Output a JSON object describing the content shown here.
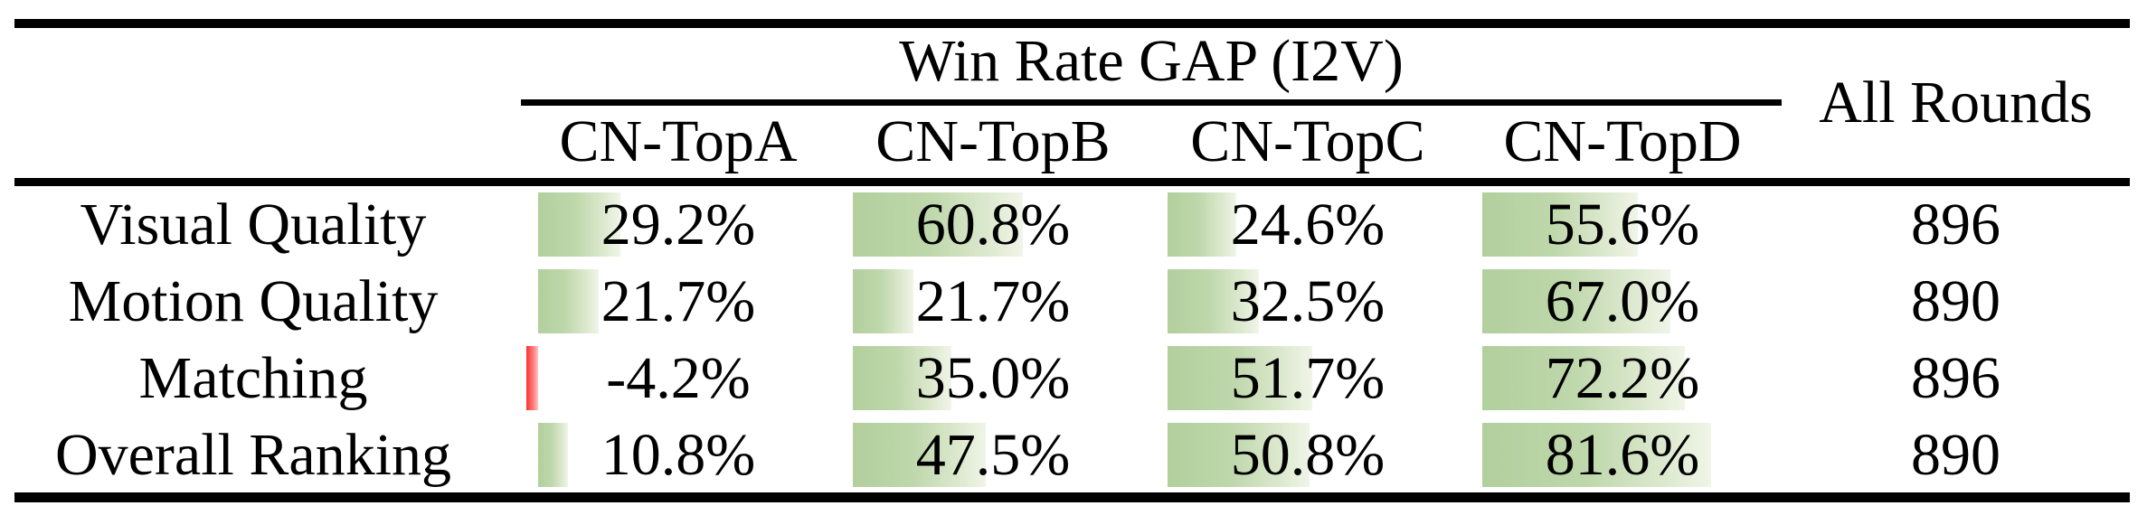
{
  "table": {
    "group_header": "Win Rate GAP (I2V)",
    "all_rounds_header": "All Rounds",
    "columns": [
      "CN-TopA",
      "CN-TopB",
      "CN-TopC",
      "CN-TopD"
    ],
    "rows": [
      {
        "label": "Visual Quality",
        "cells": [
          "29.2%",
          "60.8%",
          "24.6%",
          "55.6%"
        ],
        "rounds": "896"
      },
      {
        "label": "Motion Quality",
        "cells": [
          "21.7%",
          "21.7%",
          "32.5%",
          "67.0%"
        ],
        "rounds": "890"
      },
      {
        "label": "Matching",
        "cells": [
          "-4.2%",
          "35.0%",
          "51.7%",
          "72.2%"
        ],
        "rounds": "896"
      },
      {
        "label": "Overall Ranking",
        "cells": [
          "10.8%",
          "47.5%",
          "50.8%",
          "81.6%"
        ],
        "rounds": "890"
      }
    ]
  },
  "chart_data": {
    "type": "table",
    "title": "Win Rate GAP (I2V)",
    "row_header": [
      "Visual Quality",
      "Motion Quality",
      "Matching",
      "Overall Ranking"
    ],
    "columns": [
      "CN-TopA",
      "CN-TopB",
      "CN-TopC",
      "CN-TopD",
      "All Rounds"
    ],
    "series": [
      {
        "name": "CN-TopA",
        "values": [
          29.2,
          21.7,
          -4.2,
          10.8
        ]
      },
      {
        "name": "CN-TopB",
        "values": [
          60.8,
          21.7,
          35.0,
          47.5
        ]
      },
      {
        "name": "CN-TopC",
        "values": [
          24.6,
          32.5,
          51.7,
          50.8
        ]
      },
      {
        "name": "CN-TopD",
        "values": [
          55.6,
          67.0,
          72.2,
          81.6
        ]
      }
    ],
    "all_rounds": [
      896,
      890,
      896,
      890
    ],
    "unit": "%",
    "layout_hints": {
      "data_bars": "horizontal in-cell bars proportional to value",
      "positive_bar_color": "#b2cf9d",
      "negative_bar_color": "#f5332e",
      "bar_gradient": "fades to white toward right end"
    }
  }
}
